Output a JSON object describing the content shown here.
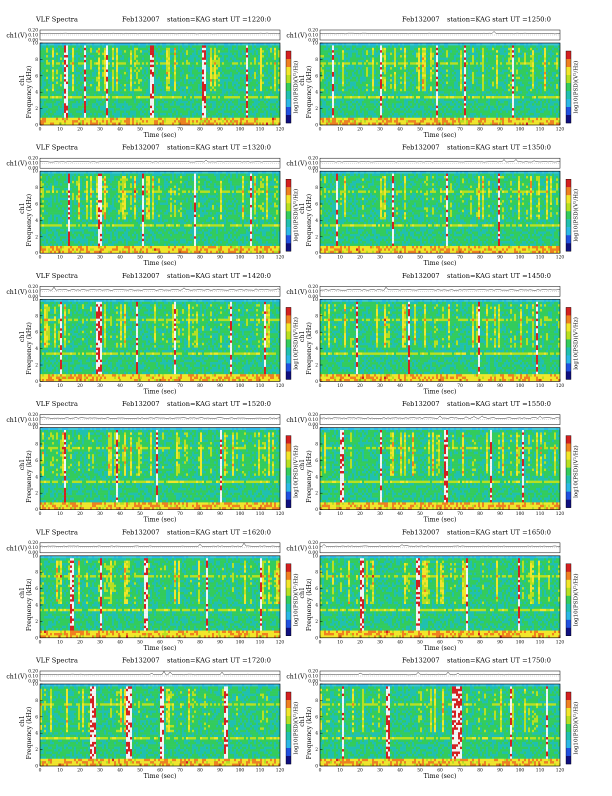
{
  "page": {
    "title_prefix": "VLF Spectra"
  },
  "chart_data": [
    {
      "type": "heatmap",
      "title": "VLF Spectra",
      "date": "Feb132007",
      "station": "station=KAG",
      "start": "start  UT  =1220:0",
      "xlabel": "Time  (sec)",
      "ylabel": "Frequency  (kHz)",
      "ylabel_top": "ch1",
      "top_ylabel": "ch1(V)",
      "colorbar_label": "log10(PSD)(V²/Hz)",
      "xlim": [
        0,
        120
      ],
      "ylim": [
        0,
        10
      ],
      "top_ylim": [
        0.0,
        0.2
      ],
      "xticks": [
        0,
        10,
        20,
        30,
        40,
        50,
        60,
        70,
        80,
        90,
        100,
        110,
        120
      ],
      "yticks": [
        0,
        2,
        4,
        6,
        8,
        10
      ],
      "top_yticks": [
        "0.00",
        "0.10",
        "0.20"
      ],
      "colorbar_ticks": [
        "",
        "",
        "",
        "",
        ""
      ],
      "bright_intervals_sec": [
        [
          12,
          14
        ],
        [
          22,
          23
        ],
        [
          33,
          34
        ],
        [
          55,
          57
        ],
        [
          81,
          83
        ],
        [
          103,
          104
        ]
      ]
    },
    {
      "type": "heatmap",
      "title": "",
      "date": "Feb132007",
      "station": "station=KAG",
      "start": "start  UT  =1250:0",
      "xlabel": "Time  (sec)",
      "ylabel": "Frequency  (kHz)",
      "ylabel_top": "ch1",
      "top_ylabel": "ch1(V)",
      "colorbar_label": "log10(PSD)(V²/Hz)",
      "xlim": [
        0,
        120
      ],
      "ylim": [
        0,
        10
      ],
      "top_ylim": [
        0.0,
        0.2
      ],
      "xticks": [
        0,
        10,
        20,
        30,
        40,
        50,
        60,
        70,
        80,
        90,
        100,
        110,
        120
      ],
      "yticks": [
        0,
        2,
        4,
        6,
        8,
        10
      ],
      "top_yticks": [
        "0.00",
        "0.10",
        "0.20"
      ],
      "colorbar_ticks": [
        "",
        "",
        "",
        "",
        ""
      ],
      "bright_intervals_sec": [
        [
          6,
          7
        ],
        [
          30,
          31
        ],
        [
          58,
          59
        ],
        [
          72,
          73
        ],
        [
          96,
          97
        ]
      ]
    },
    {
      "type": "heatmap",
      "title": "VLF Spectra",
      "date": "Feb132007",
      "station": "station=KAG",
      "start": "start  UT  =1320:0",
      "xlabel": "Time  (sec)",
      "ylabel": "Frequency  (kHz)",
      "ylabel_top": "ch1",
      "top_ylabel": "ch1(V)",
      "colorbar_label": "log10(PSD)(V²/Hz)",
      "xlim": [
        0,
        120
      ],
      "ylim": [
        0,
        10
      ],
      "top_ylim": [
        0.0,
        0.2
      ],
      "xticks": [
        0,
        10,
        20,
        30,
        40,
        50,
        60,
        70,
        80,
        90,
        100,
        110,
        120
      ],
      "yticks": [
        0,
        2,
        4,
        6,
        8,
        10
      ],
      "top_yticks": [
        "0.00",
        "0.10",
        "0.20"
      ],
      "colorbar_ticks": [
        "",
        "",
        "",
        "",
        ""
      ],
      "bright_intervals_sec": [
        [
          14,
          15
        ],
        [
          29,
          31
        ],
        [
          51,
          52
        ],
        [
          77,
          78
        ],
        [
          105,
          106
        ]
      ]
    },
    {
      "type": "heatmap",
      "title": "",
      "date": "Feb132007",
      "station": "station=KAG",
      "start": "start  UT  =1350:0",
      "xlabel": "Time  (sec)",
      "ylabel": "Frequency  (kHz)",
      "ylabel_top": "ch1",
      "top_ylabel": "ch1(V)",
      "colorbar_label": "log10(PSD)(V²/Hz)",
      "xlim": [
        0,
        120
      ],
      "ylim": [
        0,
        10
      ],
      "top_ylim": [
        0.0,
        0.2
      ],
      "xticks": [
        0,
        10,
        20,
        30,
        40,
        50,
        60,
        70,
        80,
        90,
        100,
        110,
        120
      ],
      "yticks": [
        0,
        2,
        4,
        6,
        8,
        10
      ],
      "top_yticks": [
        "0.00",
        "0.10",
        "0.20"
      ],
      "colorbar_ticks": [
        "",
        "",
        "",
        "",
        ""
      ],
      "bright_intervals_sec": [
        [
          8,
          9
        ],
        [
          36,
          37
        ],
        [
          63,
          64
        ],
        [
          89,
          90
        ]
      ]
    },
    {
      "type": "heatmap",
      "title": "VLF Spectra",
      "date": "Feb132007",
      "station": "station=KAG",
      "start": "start  UT  =1420:0",
      "xlabel": "Time  (sec)",
      "ylabel": "Frequency  (kHz)",
      "ylabel_top": "ch1",
      "top_ylabel": "ch1(V)",
      "colorbar_label": "log10(PSD)(V²/Hz)",
      "xlim": [
        0,
        120
      ],
      "ylim": [
        0,
        10
      ],
      "top_ylim": [
        0.0,
        0.2
      ],
      "xticks": [
        0,
        10,
        20,
        30,
        40,
        50,
        60,
        70,
        80,
        90,
        100,
        110,
        120
      ],
      "yticks": [
        0,
        2,
        4,
        6,
        8,
        10
      ],
      "top_yticks": [
        "0.00",
        "0.10",
        "0.20"
      ],
      "colorbar_ticks": [
        "",
        "",
        "",
        "",
        ""
      ],
      "bright_intervals_sec": [
        [
          10,
          11
        ],
        [
          28,
          31
        ],
        [
          48,
          49
        ],
        [
          67,
          68
        ],
        [
          95,
          96
        ],
        [
          112,
          113
        ]
      ]
    },
    {
      "type": "heatmap",
      "title": "",
      "date": "Feb132007",
      "station": "station=KAG",
      "start": "start  UT  =1450:0",
      "xlabel": "Time  (sec)",
      "ylabel": "Frequency  (kHz)",
      "ylabel_top": "ch1",
      "top_ylabel": "ch1(V)",
      "colorbar_label": "log10(PSD)(V²/Hz)",
      "xlim": [
        0,
        120
      ],
      "ylim": [
        0,
        10
      ],
      "top_ylim": [
        0.0,
        0.2
      ],
      "xticks": [
        0,
        10,
        20,
        30,
        40,
        50,
        60,
        70,
        80,
        90,
        100,
        110,
        120
      ],
      "yticks": [
        0,
        2,
        4,
        6,
        8,
        10
      ],
      "top_yticks": [
        "0.00",
        "0.10",
        "0.20"
      ],
      "colorbar_ticks": [
        "",
        "",
        "",
        "",
        ""
      ],
      "bright_intervals_sec": [
        [
          18,
          19
        ],
        [
          44,
          45
        ],
        [
          79,
          80
        ],
        [
          108,
          109
        ]
      ]
    },
    {
      "type": "heatmap",
      "title": "VLF Spectra",
      "date": "Feb132007",
      "station": "station=KAG",
      "start": "start  UT  =1520:0",
      "xlabel": "Time  (sec)",
      "ylabel": "Frequency  (kHz)",
      "ylabel_top": "ch1",
      "top_ylabel": "ch1(V)",
      "colorbar_label": "log10(PSD)(V²/Hz)",
      "xlim": [
        0,
        120
      ],
      "ylim": [
        0,
        10
      ],
      "top_ylim": [
        0.0,
        0.2
      ],
      "xticks": [
        0,
        10,
        20,
        30,
        40,
        50,
        60,
        70,
        80,
        90,
        100,
        110,
        120
      ],
      "yticks": [
        0,
        2,
        4,
        6,
        8,
        10
      ],
      "top_yticks": [
        "0.00",
        "0.10",
        "0.20"
      ],
      "colorbar_ticks": [
        "",
        "",
        "",
        "",
        ""
      ],
      "bright_intervals_sec": [
        [
          12,
          13
        ],
        [
          38,
          39
        ],
        [
          58,
          59
        ],
        [
          90,
          91
        ]
      ]
    },
    {
      "type": "heatmap",
      "title": "",
      "date": "Feb132007",
      "station": "station=KAG",
      "start": "start  UT  =1550:0",
      "xlabel": "Time  (sec)",
      "ylabel": "Frequency  (kHz)",
      "ylabel_top": "ch1",
      "top_ylabel": "ch1(V)",
      "colorbar_label": "log10(PSD)(V²/Hz)",
      "xlim": [
        0,
        120
      ],
      "ylim": [
        0,
        10
      ],
      "top_ylim": [
        0.0,
        0.2
      ],
      "xticks": [
        0,
        10,
        20,
        30,
        40,
        50,
        60,
        70,
        80,
        90,
        100,
        110,
        120
      ],
      "yticks": [
        0,
        2,
        4,
        6,
        8,
        10
      ],
      "top_yticks": [
        "0.00",
        "0.10",
        "0.20"
      ],
      "colorbar_ticks": [
        "",
        "",
        "",
        "",
        ""
      ],
      "bright_intervals_sec": [
        [
          10,
          12
        ],
        [
          30,
          31
        ],
        [
          62,
          64
        ],
        [
          85,
          86
        ],
        [
          101,
          102
        ]
      ]
    },
    {
      "type": "heatmap",
      "title": "VLF Spectra",
      "date": "Feb132007",
      "station": "station=KAG",
      "start": "start  UT  =1620:0",
      "xlabel": "Time  (sec)",
      "ylabel": "Frequency  (kHz)",
      "ylabel_top": "ch1",
      "top_ylabel": "ch1(V)",
      "colorbar_label": "log10(PSD)(V²/Hz)",
      "xlim": [
        0,
        120
      ],
      "ylim": [
        0,
        10
      ],
      "top_ylim": [
        0.0,
        0.2
      ],
      "xticks": [
        0,
        10,
        20,
        30,
        40,
        50,
        60,
        70,
        80,
        90,
        100,
        110,
        120
      ],
      "yticks": [
        0,
        2,
        4,
        6,
        8,
        10
      ],
      "top_yticks": [
        "0.00",
        "0.10",
        "0.20"
      ],
      "colorbar_ticks": [
        "",
        "",
        "",
        "",
        ""
      ],
      "bright_intervals_sec": [
        [
          15,
          17
        ],
        [
          30,
          31
        ],
        [
          52,
          54
        ],
        [
          83,
          84
        ],
        [
          110,
          111
        ]
      ]
    },
    {
      "type": "heatmap",
      "title": "",
      "date": "Feb132007",
      "station": "station=KAG",
      "start": "start  UT  =1650:0",
      "xlabel": "Time  (sec)",
      "ylabel": "Frequency  (kHz)",
      "ylabel_top": "ch1",
      "top_ylabel": "ch1(V)",
      "colorbar_label": "log10(PSD)(V²/Hz)",
      "xlim": [
        0,
        120
      ],
      "ylim": [
        0,
        10
      ],
      "top_ylim": [
        0.0,
        0.2
      ],
      "xticks": [
        0,
        10,
        20,
        30,
        40,
        50,
        60,
        70,
        80,
        90,
        100,
        110,
        120
      ],
      "yticks": [
        0,
        2,
        4,
        6,
        8,
        10
      ],
      "top_yticks": [
        "0.00",
        "0.10",
        "0.20"
      ],
      "colorbar_ticks": [
        "",
        "",
        "",
        "",
        ""
      ],
      "bright_intervals_sec": [
        [
          20,
          22
        ],
        [
          48,
          50
        ],
        [
          73,
          74
        ],
        [
          99,
          100
        ]
      ]
    },
    {
      "type": "heatmap",
      "title": "VLF Spectra",
      "date": "Feb132007",
      "station": "station=KAG",
      "start": "start  UT  =1720:0",
      "xlabel": "Time  (sec)",
      "ylabel": "Frequency  (kHz)",
      "ylabel_top": "ch1",
      "top_ylabel": "ch1(V)",
      "colorbar_label": "log10(PSD)(V²/Hz)",
      "xlim": [
        0,
        120
      ],
      "ylim": [
        0,
        10
      ],
      "top_ylim": [
        0.0,
        0.2
      ],
      "xticks": [
        0,
        10,
        20,
        30,
        40,
        50,
        60,
        70,
        80,
        90,
        100,
        110,
        120
      ],
      "yticks": [
        0,
        2,
        4,
        6,
        8,
        10
      ],
      "top_yticks": [
        "0.00",
        "0.10",
        "0.20"
      ],
      "colorbar_ticks": [
        "",
        "",
        "",
        "",
        ""
      ],
      "bright_intervals_sec": [
        [
          25,
          28
        ],
        [
          43,
          46
        ],
        [
          60,
          62
        ],
        [
          92,
          94
        ]
      ]
    },
    {
      "type": "heatmap",
      "title": "",
      "date": "Feb132007",
      "station": "station=KAG",
      "start": "start  UT  =1750:0",
      "xlabel": "Time  (sec)",
      "ylabel": "Frequency  (kHz)",
      "ylabel_top": "ch1",
      "top_ylabel": "ch1(V)",
      "colorbar_label": "log10(PSD)(V²/Hz)",
      "xlim": [
        0,
        120
      ],
      "ylim": [
        0,
        10
      ],
      "top_ylim": [
        0.0,
        0.2
      ],
      "xticks": [
        0,
        10,
        20,
        30,
        40,
        50,
        60,
        70,
        80,
        90,
        100,
        110,
        120
      ],
      "yticks": [
        0,
        2,
        4,
        6,
        8,
        10
      ],
      "top_yticks": [
        "0.00",
        "0.10",
        "0.20"
      ],
      "colorbar_ticks": [
        "",
        "",
        "",
        "",
        ""
      ],
      "bright_intervals_sec": [
        [
          11,
          12
        ],
        [
          33,
          35
        ],
        [
          66,
          71
        ],
        [
          95,
          96
        ],
        [
          113,
          114
        ]
      ]
    }
  ]
}
